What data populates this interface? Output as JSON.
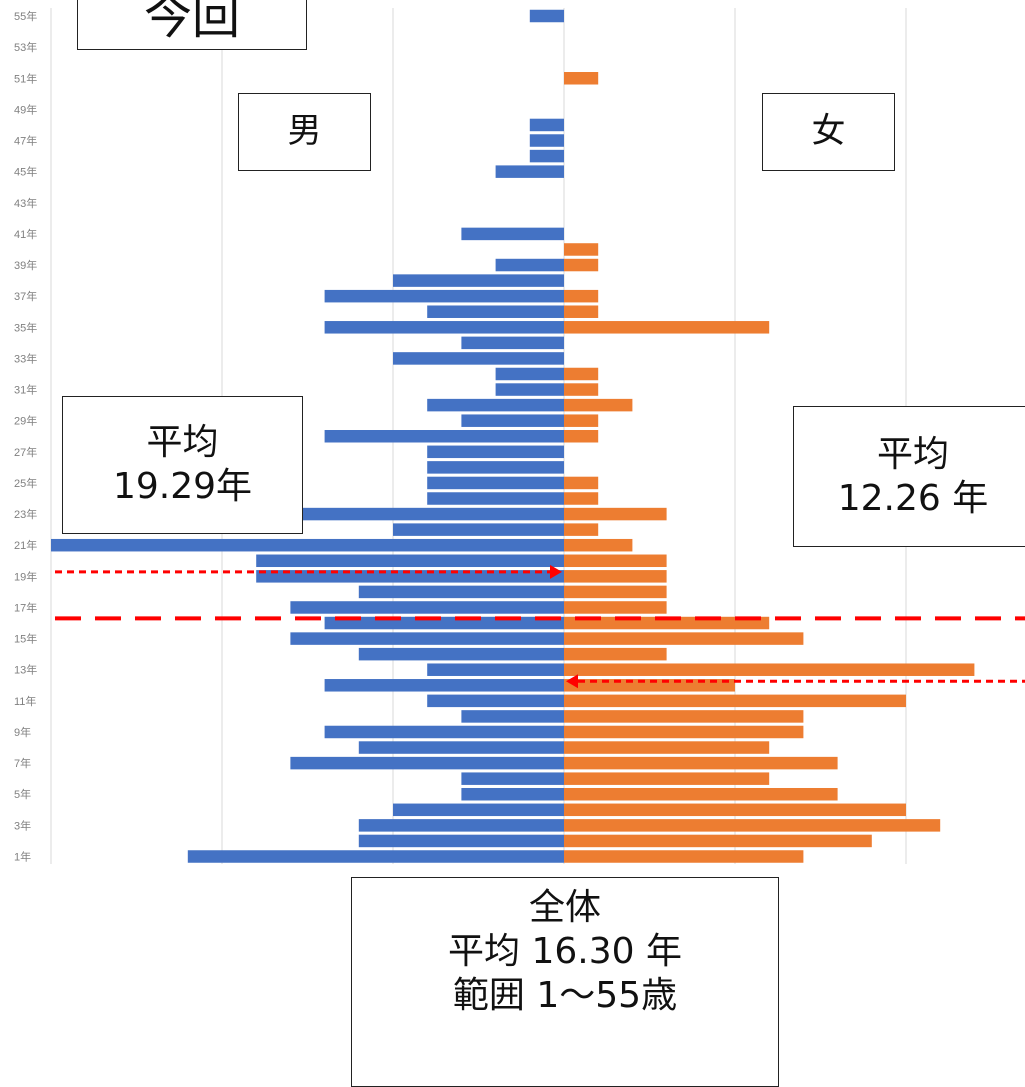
{
  "title_partial": "今回",
  "labels": {
    "male": "男",
    "female": "女"
  },
  "male_average": {
    "line1": "平均",
    "line2": "19.29年",
    "value": 19.29
  },
  "female_average": {
    "line1": "平均",
    "line2": "12.26 年",
    "value": 12.26
  },
  "overall": {
    "line1": "全体",
    "line2": "平均 16.30 年",
    "line3": "範囲 1～55歳",
    "average": 16.3
  },
  "colors": {
    "male": "#4472C4",
    "female": "#ED7D31",
    "marker": "#FF0000",
    "grid": "#D9D9D9"
  },
  "chart_data": {
    "type": "bar",
    "orientation": "horizontal-pyramid",
    "ylim": [
      1,
      55
    ],
    "tick_labels": [
      "1年",
      "3年",
      "5年",
      "7年",
      "9年",
      "11年",
      "13年",
      "15年",
      "17年",
      "19年",
      "21年",
      "23年",
      "25年",
      "27年",
      "29年",
      "31年",
      "33年",
      "35年",
      "37年",
      "39年",
      "41年",
      "43年",
      "45年",
      "47年",
      "49年",
      "51年",
      "53年",
      "55年"
    ],
    "y_values": [
      1,
      2,
      3,
      4,
      5,
      6,
      7,
      8,
      9,
      10,
      11,
      12,
      13,
      14,
      15,
      16,
      17,
      18,
      19,
      20,
      21,
      22,
      23,
      24,
      25,
      26,
      27,
      28,
      29,
      30,
      31,
      32,
      33,
      34,
      35,
      36,
      37,
      38,
      39,
      40,
      41,
      42,
      43,
      44,
      45,
      46,
      47,
      48,
      49,
      50,
      51,
      52,
      53,
      54,
      55
    ],
    "series": [
      {
        "name": "男",
        "values": [
          11,
          6,
          6,
          5,
          3,
          3,
          8,
          6,
          7,
          3,
          4,
          7,
          4,
          6,
          8,
          7,
          8,
          6,
          9,
          9,
          15,
          5,
          10,
          4,
          4,
          4,
          4,
          7,
          3,
          4,
          2,
          2,
          5,
          3,
          7,
          4,
          7,
          5,
          2,
          0,
          3,
          0,
          0,
          0,
          2,
          1,
          1,
          1,
          0,
          0,
          0,
          0,
          0,
          0,
          1
        ]
      },
      {
        "name": "女",
        "values": [
          7,
          9,
          11,
          10,
          8,
          6,
          8,
          6,
          7,
          7,
          10,
          5,
          12,
          3,
          7,
          6,
          3,
          3,
          3,
          3,
          2,
          1,
          3,
          1,
          1,
          0,
          0,
          1,
          1,
          2,
          1,
          1,
          0,
          0,
          6,
          1,
          1,
          0,
          1,
          1,
          0,
          0,
          0,
          0,
          0,
          0,
          0,
          0,
          0,
          0,
          1,
          0,
          0,
          0,
          0
        ]
      }
    ],
    "reference_lines": [
      {
        "type": "overall-average",
        "y": 16.3
      },
      {
        "type": "male-average",
        "y": 19.29
      },
      {
        "type": "female-average",
        "y": 12.26
      }
    ]
  }
}
